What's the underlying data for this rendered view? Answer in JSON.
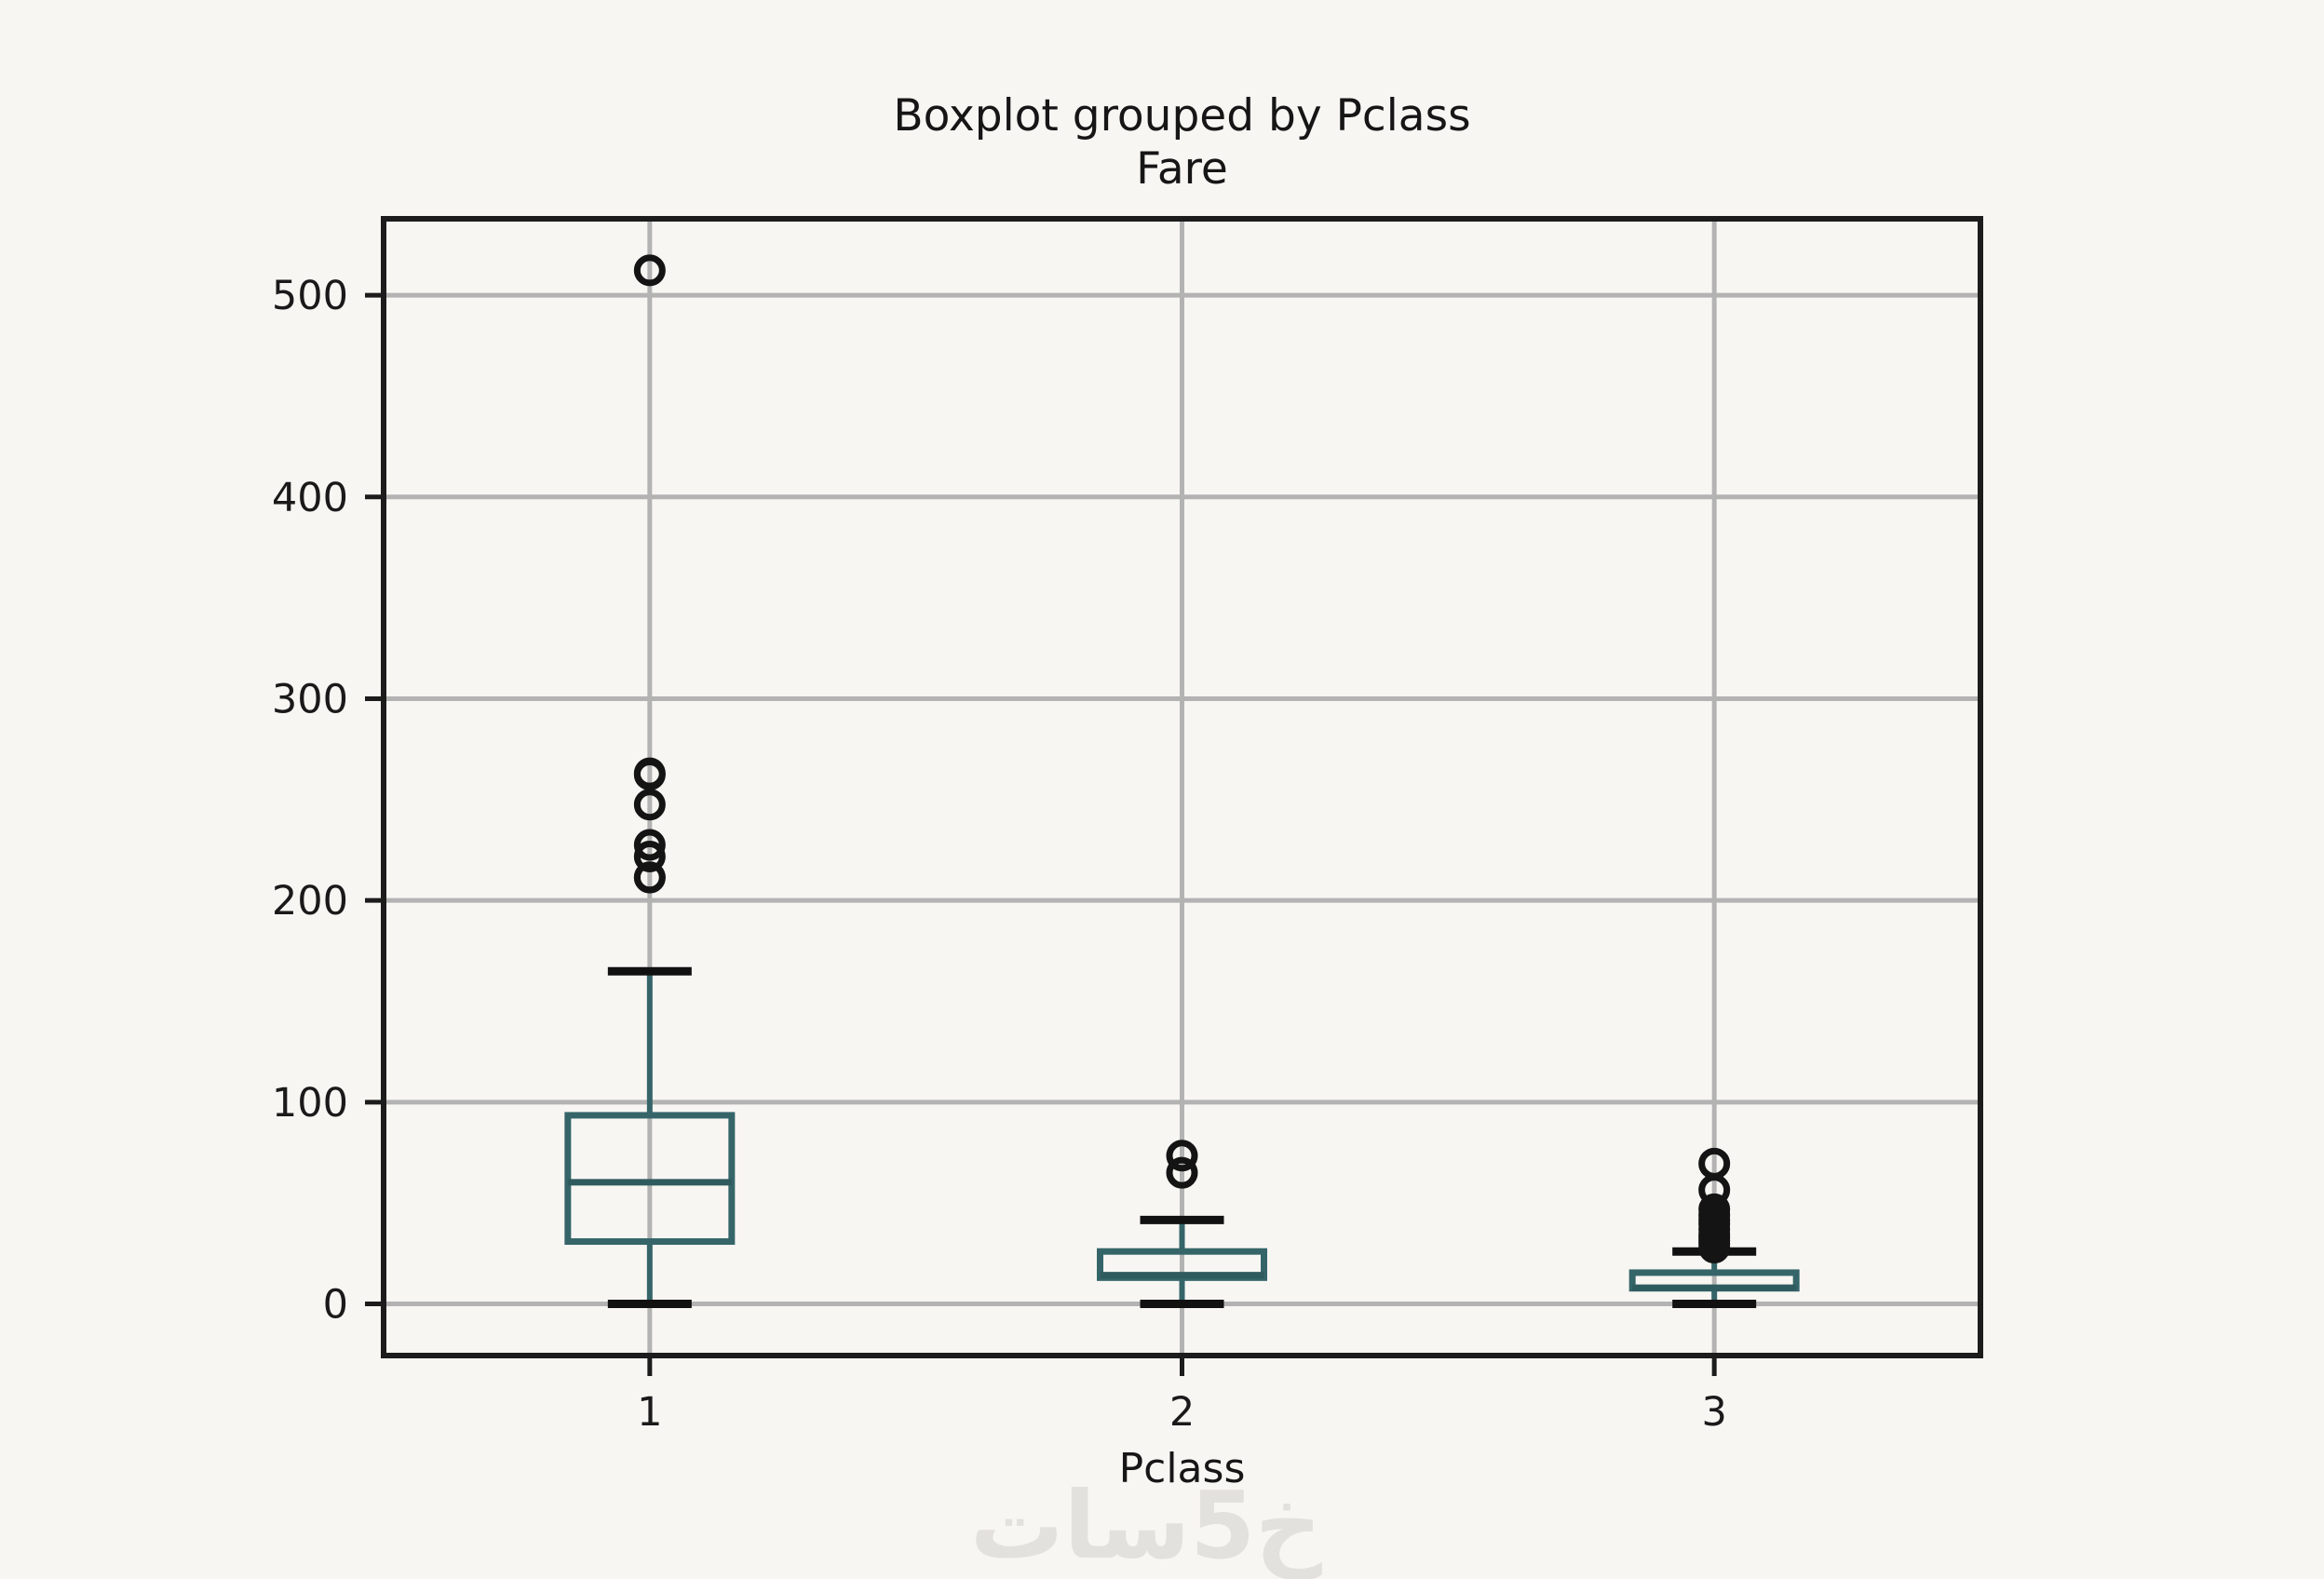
{
  "page": {
    "background": "#f8f6f3"
  },
  "header": {
    "title": "Boxplot grouped by Pclass",
    "subtitle": "Fare"
  },
  "axes": {
    "xlabel": "Pclass"
  },
  "watermark": {
    "text": "خ5سات"
  },
  "chart_data": {
    "type": "boxplot",
    "title": "Boxplot grouped by Pclass",
    "subtitle": "Fare",
    "xlabel": "Pclass",
    "ylabel": "",
    "categories": [
      "1",
      "2",
      "3"
    ],
    "y_ticks": [
      0,
      100,
      200,
      300,
      400,
      500
    ],
    "ylim": [
      -25.6,
      537.9
    ],
    "grid": true,
    "legend": false,
    "series": [
      {
        "category": "1",
        "whisker_low": 0,
        "q1": 30.92,
        "median": 60.29,
        "q3": 93.5,
        "whisker_high": 164.87,
        "outliers": [
          211.34,
          211.5,
          221.78,
          227.53,
          247.52,
          262.38,
          263.0,
          512.33
        ]
      },
      {
        "category": "2",
        "whisker_low": 0,
        "q1": 13.0,
        "median": 14.25,
        "q3": 26.0,
        "whisker_high": 41.58,
        "outliers": [
          65.0,
          73.5
        ]
      },
      {
        "category": "3",
        "whisker_low": 0,
        "q1": 7.75,
        "median": 8.05,
        "q3": 15.5,
        "whisker_high": 26.0,
        "outliers": [
          27.9,
          29.7,
          31.39,
          33.0,
          34.38,
          37.0,
          39.69,
          41.5,
          44.0,
          46.9,
          56.5,
          69.55
        ]
      }
    ],
    "colors": {
      "box": "#356569",
      "median": "#2f5b5e",
      "whisker": "#356569",
      "caps": "#111111",
      "outliers": "#141414",
      "grid": "#b3b3b3",
      "spine": "#1c1c1c",
      "tick_label": "#1a1a1a"
    }
  }
}
